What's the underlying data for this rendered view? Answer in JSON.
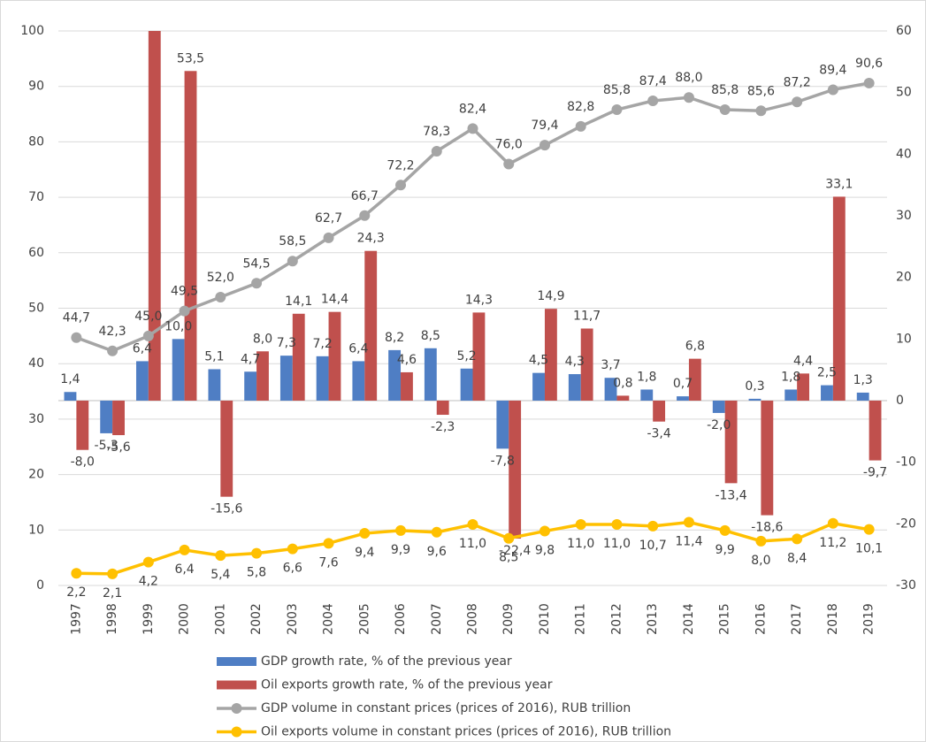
{
  "chart_data": {
    "type": "bar",
    "categories": [
      "1997",
      "1998",
      "1999",
      "2000",
      "2001",
      "2002",
      "2003",
      "2004",
      "2005",
      "2006",
      "2007",
      "2008",
      "2009",
      "2010",
      "2011",
      "2012",
      "2013",
      "2014",
      "2015",
      "2016",
      "2017",
      "2018",
      "2019"
    ],
    "ylim": [
      0,
      100
    ],
    "yticks": [
      0,
      10,
      20,
      30,
      40,
      50,
      60,
      70,
      80,
      90,
      100
    ],
    "y2lim": [
      -30,
      60
    ],
    "y2ticks": [
      -30,
      -20,
      -10,
      0,
      10,
      20,
      30,
      40,
      50,
      60
    ],
    "grid": true,
    "legend": "bottom",
    "series": [
      {
        "name": "GDP growth rate, % of the previous year",
        "type": "bar",
        "axis": "y2",
        "color": "#4f7ec4",
        "values": [
          1.4,
          -5.3,
          6.4,
          10.0,
          5.1,
          4.7,
          7.3,
          7.2,
          6.4,
          8.2,
          8.5,
          5.2,
          -7.8,
          4.5,
          4.3,
          3.7,
          1.8,
          0.7,
          -2.0,
          0.3,
          1.8,
          2.5,
          1.3
        ],
        "value_labels": [
          "1,4",
          "-5,3",
          "6,4",
          "10,0",
          "5,1",
          "4,7",
          "7,3",
          "7,2",
          "6,4",
          "8,2",
          "8,5",
          "5,2",
          "-7,8",
          "4,5",
          "4,3",
          "3,7",
          "1,8",
          "0,7",
          "-2,0",
          "0,3",
          "1,8",
          "2,5",
          "1,3"
        ]
      },
      {
        "name": "Oil exports growth rate, % of the previous year",
        "type": "bar",
        "axis": "y2",
        "color": "#c0504d",
        "values": [
          -8.0,
          -5.6,
          60,
          53.5,
          -15.6,
          8.0,
          14.1,
          14.4,
          24.3,
          4.6,
          -2.3,
          14.3,
          -22.4,
          14.9,
          11.7,
          0.8,
          -3.4,
          6.8,
          -13.4,
          -18.6,
          4.4,
          33.1,
          -9.7
        ],
        "value_labels": [
          "-8,0",
          "-5,6",
          null,
          "53,5",
          "-15,6",
          "8,0",
          "14,1",
          "14,4",
          "24,3",
          "4,6",
          "-2,3",
          "14,3",
          "-22,4",
          "14,9",
          "11,7",
          "0,8",
          "-3,4",
          "6,8",
          "-13,4",
          "-18,6",
          "4,4",
          "33,1",
          "-9,7"
        ]
      },
      {
        "name": "GDP volume in constant prices (prices of 2016), RUB trillion",
        "type": "line",
        "color": "#a5a5a5",
        "values": [
          44.7,
          42.3,
          45.0,
          49.5,
          52.0,
          54.5,
          58.5,
          62.7,
          66.7,
          72.2,
          78.3,
          82.4,
          76.0,
          79.4,
          82.8,
          85.8,
          87.4,
          88.0,
          85.8,
          85.6,
          87.2,
          89.4,
          90.6
        ],
        "value_labels": [
          "44,7",
          "42,3",
          "45,0",
          "49,5",
          "52,0",
          "54,5",
          "58,5",
          "62,7",
          "66,7",
          "72,2",
          "78,3",
          "82,4",
          "76,0",
          "79,4",
          "82,8",
          "85,8",
          "87,4",
          "88,0",
          "85,8",
          "85,6",
          "87,2",
          "89,4",
          "90,6"
        ]
      },
      {
        "name": "Oil exports volume in constant prices (prices of 2016), RUB trillion",
        "type": "line",
        "color": "#ffc000",
        "values": [
          2.2,
          2.1,
          4.2,
          6.4,
          5.4,
          5.8,
          6.6,
          7.6,
          9.4,
          9.9,
          9.6,
          11.0,
          8.5,
          9.8,
          11.0,
          11.0,
          10.7,
          11.4,
          9.9,
          8.0,
          8.4,
          11.2,
          10.1
        ],
        "value_labels": [
          "2,2",
          "2,1",
          "4,2",
          "6,4",
          "5,4",
          "5,8",
          "6,6",
          "7,6",
          "9,4",
          "9,9",
          "9,6",
          "11,0",
          "8,5",
          "9,8",
          "11,0",
          "11,0",
          "10,7",
          "11,4",
          "9,9",
          "8,0",
          "8,4",
          "11,2",
          "10,1"
        ]
      }
    ]
  }
}
